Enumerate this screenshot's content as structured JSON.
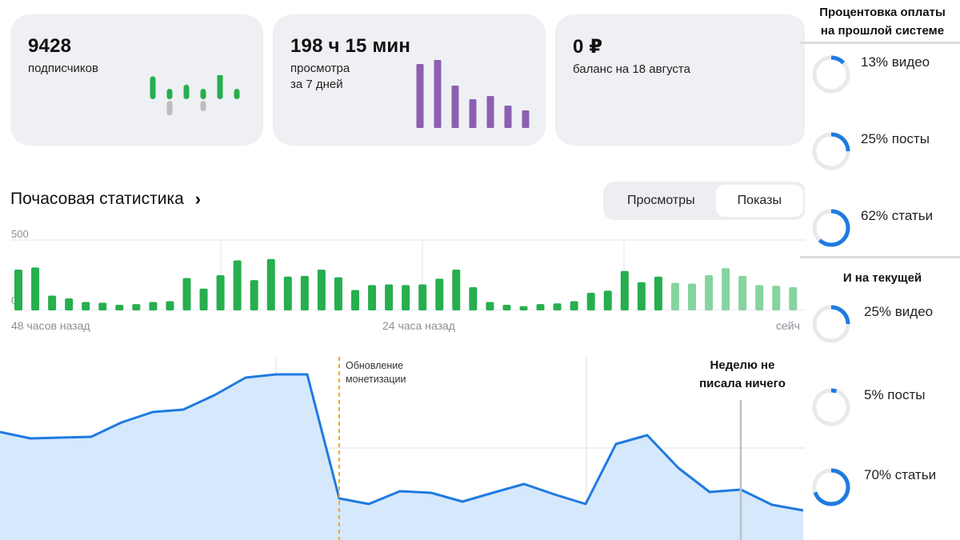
{
  "stats": {
    "subscribers": {
      "value": "9428",
      "label": "подписчиков",
      "spark": [
        22,
        10,
        14,
        10,
        25,
        10,
        6
      ],
      "spark_neg": [
        0,
        14,
        0,
        10,
        0,
        0,
        0
      ]
    },
    "views": {
      "value": "198 ч 15 мин",
      "label_line1": "просмотра",
      "label_line2": "за 7 дней",
      "spark": [
        80,
        85,
        53,
        36,
        40,
        28,
        22
      ]
    },
    "balance": {
      "value": "0 ₽",
      "label": "баланс на 18 августа"
    }
  },
  "hourly": {
    "title": "Почасовая статистика",
    "chevron": "›",
    "tabs": [
      "Просмотры",
      "Показы"
    ],
    "active_tab": 1
  },
  "chart_data": [
    {
      "type": "bar",
      "title": "Почасовая статистика",
      "ylim": [
        0,
        500
      ],
      "yticks": [
        "500",
        "0"
      ],
      "xticks": [
        "48 часов назад",
        "24 часа назад",
        "сейч"
      ],
      "values": [
        290,
        305,
        105,
        85,
        60,
        55,
        40,
        45,
        60,
        65,
        230,
        155,
        250,
        355,
        215,
        365,
        240,
        245,
        290,
        235,
        145,
        180,
        185,
        180,
        185,
        225,
        290,
        165,
        60,
        40,
        30,
        45,
        50,
        65,
        125,
        140,
        280,
        200,
        240,
        195,
        190,
        250,
        300,
        245,
        180,
        175,
        165
      ],
      "light_from_index": 39,
      "colors": {
        "bar": "#27ae4f",
        "bar_recent": "#86d49e"
      }
    },
    {
      "type": "area",
      "values": [
        540,
        548,
        547,
        546,
        528,
        515,
        512,
        494,
        472,
        468,
        468,
        623,
        630,
        614,
        616,
        627,
        616,
        605,
        618,
        630,
        555,
        544,
        585,
        615,
        612,
        631,
        638
      ],
      "annotations": [
        {
          "text_line1": "Обновление",
          "text_line2": "монетизации",
          "at_index": 11
        },
        {
          "text_line1": "Неделю не",
          "text_line2": "писала ничего",
          "at_index": 24
        }
      ],
      "colors": {
        "line": "#1f7ae0",
        "fill": "#d6e8fb",
        "marker": "#f5a623"
      }
    }
  ],
  "payment_split": {
    "old_title_line1": "Процентовка оплаты",
    "old_title_line2": "на прошлой системе",
    "old": [
      {
        "percent": 13,
        "label": "13% видео"
      },
      {
        "percent": 25,
        "label": "25% посты"
      },
      {
        "percent": 62,
        "label": "62% статьи"
      }
    ],
    "new_title": "И на текущей",
    "new": [
      {
        "percent": 25,
        "label": "25% видео"
      },
      {
        "percent": 5,
        "label": "5% посты"
      },
      {
        "percent": 70,
        "label": "70% статьи"
      }
    ],
    "colors": {
      "ring": "#1f7ae0",
      "track": "#e8e9eb"
    }
  }
}
